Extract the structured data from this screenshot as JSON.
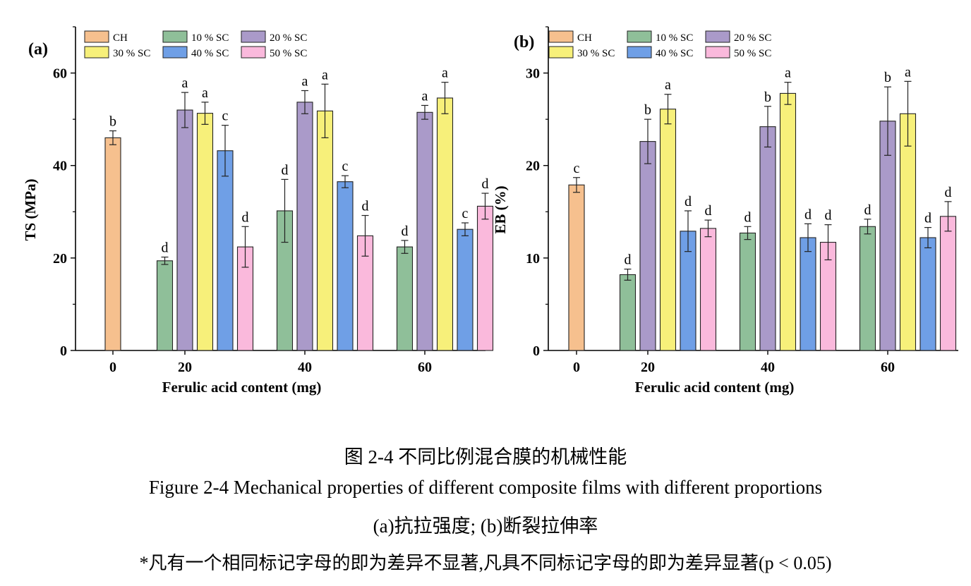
{
  "chart_data": [
    {
      "type": "bar",
      "panel_label": "(a)",
      "ylabel": "TS (MPa)",
      "xlabel": "Ferulic acid content (mg)",
      "ylim": [
        0,
        70
      ],
      "yticks": [
        0,
        20,
        40,
        60
      ],
      "legend_position": "top",
      "groups": [
        {
          "label": "0",
          "bars": [
            {
              "series": 0,
              "value": 46.0,
              "error": 1.5,
              "letter": "b"
            }
          ]
        },
        {
          "label": "20",
          "bars": [
            {
              "series": 1,
              "value": 19.4,
              "error": 0.8,
              "letter": "d"
            },
            {
              "series": 2,
              "value": 52.0,
              "error": 3.8,
              "letter": "a"
            },
            {
              "series": 3,
              "value": 51.3,
              "error": 2.4,
              "letter": "a"
            },
            {
              "series": 4,
              "value": 43.2,
              "error": 5.5,
              "letter": "c"
            },
            {
              "series": 5,
              "value": 22.4,
              "error": 4.4,
              "letter": "d"
            }
          ]
        },
        {
          "label": "40",
          "bars": [
            {
              "series": 1,
              "value": 30.2,
              "error": 6.8,
              "letter": "d"
            },
            {
              "series": 2,
              "value": 53.7,
              "error": 2.5,
              "letter": "a"
            },
            {
              "series": 3,
              "value": 51.8,
              "error": 5.8,
              "letter": "a"
            },
            {
              "series": 4,
              "value": 36.5,
              "error": 1.3,
              "letter": "c"
            },
            {
              "series": 5,
              "value": 24.8,
              "error": 4.4,
              "letter": "d"
            }
          ]
        },
        {
          "label": "60",
          "bars": [
            {
              "series": 1,
              "value": 22.4,
              "error": 1.4,
              "letter": "d"
            },
            {
              "series": 2,
              "value": 51.5,
              "error": 1.5,
              "letter": "a"
            },
            {
              "series": 3,
              "value": 54.6,
              "error": 3.4,
              "letter": "a"
            },
            {
              "series": 4,
              "value": 26.2,
              "error": 1.4,
              "letter": "c"
            },
            {
              "series": 5,
              "value": 31.2,
              "error": 2.8,
              "letter": "d"
            }
          ]
        }
      ]
    },
    {
      "type": "bar",
      "panel_label": "(b)",
      "ylabel": "EB (%)",
      "xlabel": "Ferulic acid content (mg)",
      "ylim": [
        0,
        35
      ],
      "yticks": [
        0,
        10,
        20,
        30
      ],
      "legend_position": "top",
      "groups": [
        {
          "label": "0",
          "bars": [
            {
              "series": 0,
              "value": 17.9,
              "error": 0.8,
              "letter": "c"
            }
          ]
        },
        {
          "label": "20",
          "bars": [
            {
              "series": 1,
              "value": 8.2,
              "error": 0.6,
              "letter": "d"
            },
            {
              "series": 2,
              "value": 22.6,
              "error": 2.4,
              "letter": "b"
            },
            {
              "series": 3,
              "value": 26.1,
              "error": 1.6,
              "letter": "a"
            },
            {
              "series": 4,
              "value": 12.9,
              "error": 2.2,
              "letter": "d"
            },
            {
              "series": 5,
              "value": 13.2,
              "error": 0.9,
              "letter": "d"
            }
          ]
        },
        {
          "label": "40",
          "bars": [
            {
              "series": 1,
              "value": 12.7,
              "error": 0.7,
              "letter": "d"
            },
            {
              "series": 2,
              "value": 24.2,
              "error": 2.2,
              "letter": "b"
            },
            {
              "series": 3,
              "value": 27.8,
              "error": 1.2,
              "letter": "a"
            },
            {
              "series": 4,
              "value": 12.2,
              "error": 1.5,
              "letter": "d"
            },
            {
              "series": 5,
              "value": 11.7,
              "error": 1.9,
              "letter": "d"
            }
          ]
        },
        {
          "label": "60",
          "bars": [
            {
              "series": 1,
              "value": 13.4,
              "error": 0.8,
              "letter": "d"
            },
            {
              "series": 2,
              "value": 24.8,
              "error": 3.7,
              "letter": "b"
            },
            {
              "series": 3,
              "value": 25.6,
              "error": 3.5,
              "letter": "a"
            },
            {
              "series": 4,
              "value": 12.2,
              "error": 1.1,
              "letter": "d"
            },
            {
              "series": 5,
              "value": 14.5,
              "error": 1.6,
              "letter": "d"
            }
          ]
        }
      ]
    }
  ],
  "series": [
    {
      "name": "CH",
      "color": "#f6c08e"
    },
    {
      "name": "10 % SC",
      "color": "#8fbf99"
    },
    {
      "name": "20 % SC",
      "color": "#aa9ac9"
    },
    {
      "name": "30 % SC",
      "color": "#f7f07a"
    },
    {
      "name": "40 % SC",
      "color": "#6f9fe6"
    },
    {
      "name": "50 % SC",
      "color": "#fab9dc"
    }
  ],
  "captions": {
    "zh": "图  2-4  不同比例混合膜的机械性能",
    "en": "Figure 2-4 Mechanical properties of different composite films with different proportions",
    "sub": "(a)抗拉强度; (b)断裂拉伸率",
    "note": "*凡有一个相同标记字母的即为差异不显著,凡具不同标记字母的即为差异显著(p < 0.05)"
  }
}
